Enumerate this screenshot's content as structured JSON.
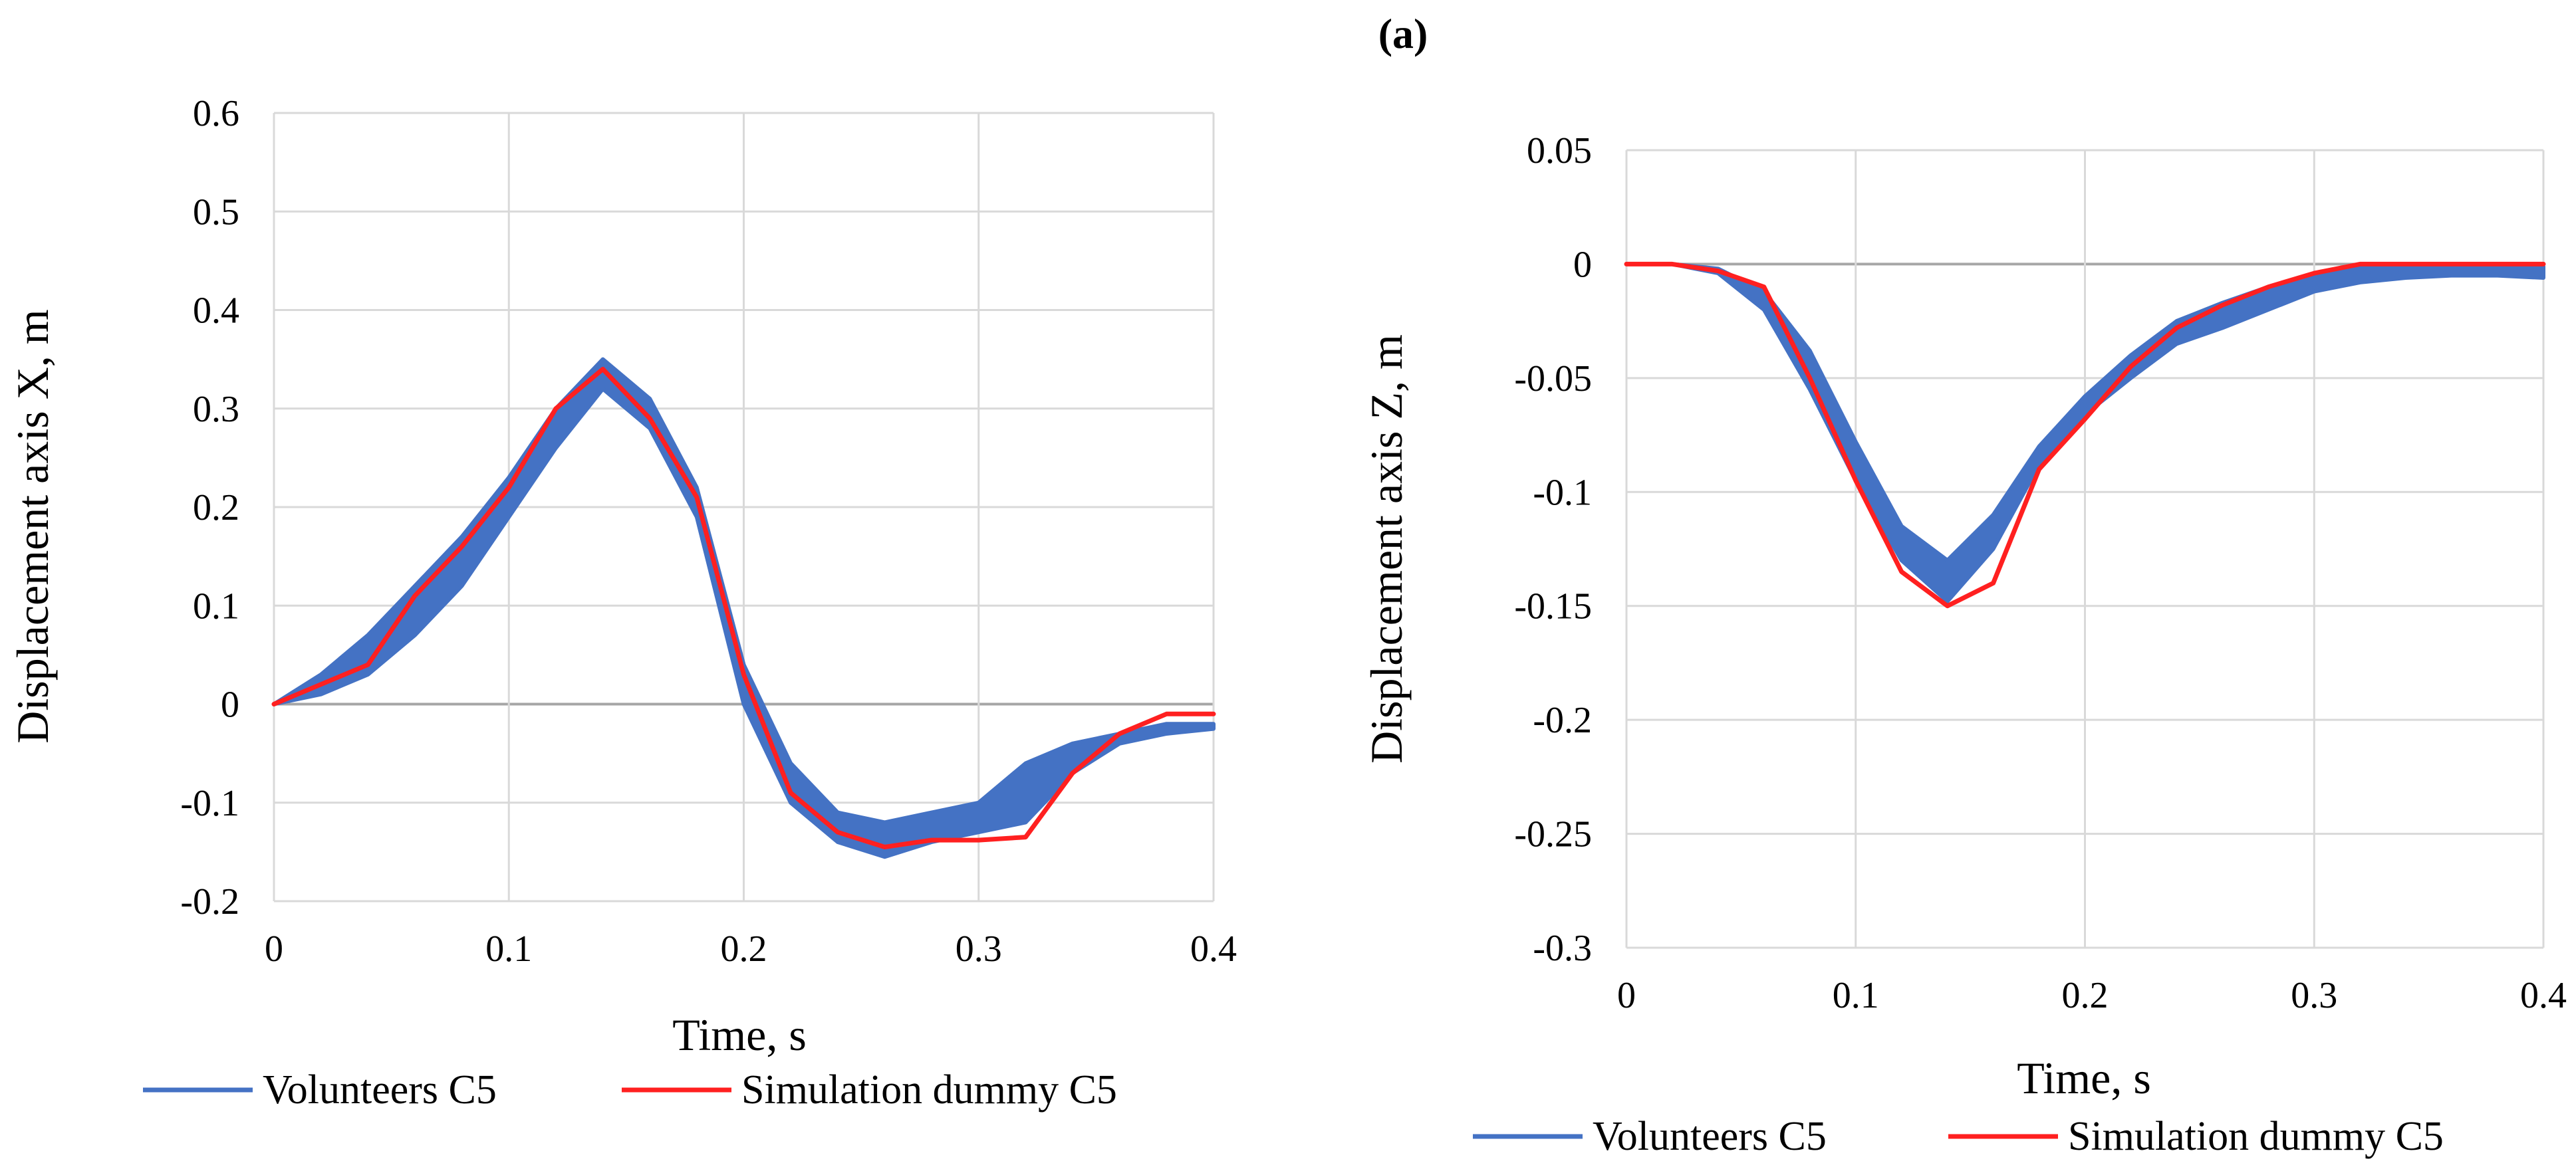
{
  "figure": {
    "label": "(a)"
  },
  "colors": {
    "volunteers": "#4472C4",
    "simulation": "#FF2020",
    "grid": "#D9D9D9",
    "zero_line": "#A6A6A6"
  },
  "chart_data": [
    {
      "type": "line",
      "id": "x",
      "title": "",
      "xlabel": "Time,  s",
      "ylabel": "Displacement axis X, m",
      "xlim": [
        0,
        0.4
      ],
      "ylim": [
        -0.2,
        0.6
      ],
      "xticks": [
        0,
        0.1,
        0.2,
        0.3,
        0.4
      ],
      "yticks": [
        -0.2,
        -0.1,
        0,
        0.1,
        0.2,
        0.3,
        0.4,
        0.5,
        0.6
      ],
      "xtick_labels": [
        "0",
        "0.1",
        "0.2",
        "0.3",
        "0.4"
      ],
      "ytick_labels": [
        "-0.2",
        "-0.1",
        "0",
        "0.1",
        "0.2",
        "0.3",
        "0.4",
        "0.5",
        "0.6"
      ],
      "grid": true,
      "legend": "bottom",
      "series": [
        {
          "name": "Volunteers C5",
          "kind": "band",
          "x": [
            0,
            0.02,
            0.04,
            0.06,
            0.08,
            0.1,
            0.12,
            0.14,
            0.16,
            0.18,
            0.2,
            0.22,
            0.24,
            0.26,
            0.28,
            0.3,
            0.32,
            0.34,
            0.36,
            0.38,
            0.4
          ],
          "upper": [
            0,
            0.03,
            0.07,
            0.12,
            0.17,
            0.23,
            0.3,
            0.35,
            0.31,
            0.22,
            0.04,
            -0.06,
            -0.11,
            -0.12,
            -0.11,
            -0.1,
            -0.06,
            -0.04,
            -0.03,
            -0.02,
            -0.02
          ],
          "lower": [
            0,
            0.01,
            0.03,
            0.07,
            0.12,
            0.19,
            0.26,
            0.32,
            0.28,
            0.19,
            0.0,
            -0.1,
            -0.14,
            -0.155,
            -0.14,
            -0.13,
            -0.12,
            -0.07,
            -0.04,
            -0.03,
            -0.025
          ]
        },
        {
          "name": "Simulation dummy C5",
          "kind": "line",
          "x": [
            0,
            0.02,
            0.04,
            0.06,
            0.08,
            0.1,
            0.12,
            0.14,
            0.16,
            0.18,
            0.2,
            0.22,
            0.24,
            0.26,
            0.28,
            0.3,
            0.32,
            0.34,
            0.36,
            0.38,
            0.4
          ],
          "values": [
            0,
            0.02,
            0.04,
            0.11,
            0.16,
            0.22,
            0.3,
            0.34,
            0.29,
            0.21,
            0.03,
            -0.09,
            -0.13,
            -0.145,
            -0.138,
            -0.138,
            -0.135,
            -0.07,
            -0.03,
            -0.01,
            -0.01
          ]
        }
      ]
    },
    {
      "type": "line",
      "id": "z",
      "title": "",
      "xlabel": "Time,  s",
      "ylabel": "Displacement axis Z, m",
      "xlim": [
        0,
        0.4
      ],
      "ylim": [
        -0.3,
        0.05
      ],
      "xticks": [
        0,
        0.1,
        0.2,
        0.3,
        0.4
      ],
      "yticks": [
        -0.3,
        -0.25,
        -0.2,
        -0.15,
        -0.1,
        -0.05,
        0,
        0.05
      ],
      "xtick_labels": [
        "0",
        "0.1",
        "0.2",
        "0.3",
        "0.4"
      ],
      "ytick_labels": [
        "-0.3",
        "-0.25",
        "-0.2",
        "-0.15",
        "-0.1",
        "-0.05",
        "0",
        "0.05"
      ],
      "grid": true,
      "legend": "bottom",
      "series": [
        {
          "name": "Volunteers C5",
          "kind": "band",
          "x": [
            0,
            0.02,
            0.04,
            0.06,
            0.08,
            0.1,
            0.12,
            0.14,
            0.16,
            0.18,
            0.2,
            0.22,
            0.24,
            0.26,
            0.28,
            0.3,
            0.32,
            0.34,
            0.36,
            0.38,
            0.4
          ],
          "upper": [
            0,
            0,
            -0.002,
            -0.012,
            -0.038,
            -0.078,
            -0.115,
            -0.13,
            -0.11,
            -0.08,
            -0.058,
            -0.04,
            -0.025,
            -0.017,
            -0.01,
            -0.004,
            -0.001,
            0,
            0,
            0,
            -0.001
          ],
          "lower": [
            0,
            0,
            -0.004,
            -0.02,
            -0.055,
            -0.095,
            -0.13,
            -0.148,
            -0.125,
            -0.088,
            -0.066,
            -0.05,
            -0.035,
            -0.028,
            -0.02,
            -0.012,
            -0.008,
            -0.006,
            -0.005,
            -0.005,
            -0.006
          ]
        },
        {
          "name": "Simulation dummy C5",
          "kind": "line",
          "x": [
            0,
            0.02,
            0.04,
            0.06,
            0.08,
            0.1,
            0.12,
            0.14,
            0.16,
            0.18,
            0.2,
            0.22,
            0.24,
            0.26,
            0.28,
            0.3,
            0.32,
            0.34,
            0.36,
            0.38,
            0.4
          ],
          "values": [
            0,
            0,
            -0.003,
            -0.01,
            -0.05,
            -0.095,
            -0.135,
            -0.15,
            -0.14,
            -0.09,
            -0.068,
            -0.045,
            -0.028,
            -0.018,
            -0.01,
            -0.004,
            0,
            0,
            0,
            0,
            0
          ]
        }
      ]
    }
  ]
}
